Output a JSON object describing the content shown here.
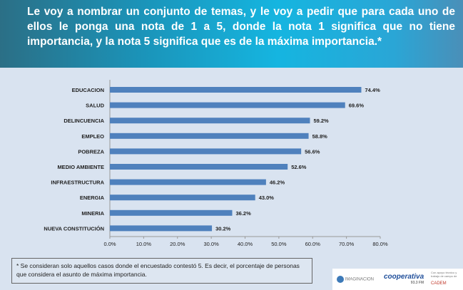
{
  "title": "Le voy a nombrar un conjunto de temas, y le voy a pedir que para cada uno de ellos le ponga una nota de 1 a 5, donde la nota 1 significa que no tiene importancia, y la nota 5 significa que es de la máxima importancia.*",
  "chart_data": {
    "type": "bar",
    "orientation": "horizontal",
    "categories": [
      "EDUCACION",
      "SALUD",
      "DELINCUENCIA",
      "EMPLEO",
      "POBREZA",
      "MEDIO AMBIENTE",
      "INFRAESTRUCTURA",
      "ENERGIA",
      "MINERIA",
      "NUEVA CONSTITUCIÓN"
    ],
    "values": [
      74.4,
      69.6,
      59.2,
      58.8,
      56.6,
      52.6,
      46.2,
      43.0,
      36.2,
      30.2
    ],
    "data_labels": [
      "74.4%",
      "69.6%",
      "59.2%",
      "58.8%",
      "56.6%",
      "52.6%",
      "46.2%",
      "43.0%",
      "36.2%",
      "30.2%"
    ],
    "xlim": [
      0,
      80
    ],
    "xticks": [
      "0.0%",
      "10.0%",
      "20.0%",
      "30.0%",
      "40.0%",
      "50.0%",
      "60.0%",
      "70.0%",
      "80.0%"
    ],
    "bar_color": "#4f81bd",
    "grid": false
  },
  "footnote": "* Se consideran solo aquellos casos donde el encuestado contestó 5. Es decir, el porcentaje de personas que considera el asunto de máxima importancia.",
  "logos": {
    "imaginacion": "IMAGINACION",
    "cooperativa": "cooperativa",
    "cooperativa_sub": "93.3 FM",
    "collab": "Con apoyo técnico y trabajo de campo de",
    "cadem": "CADEM"
  }
}
